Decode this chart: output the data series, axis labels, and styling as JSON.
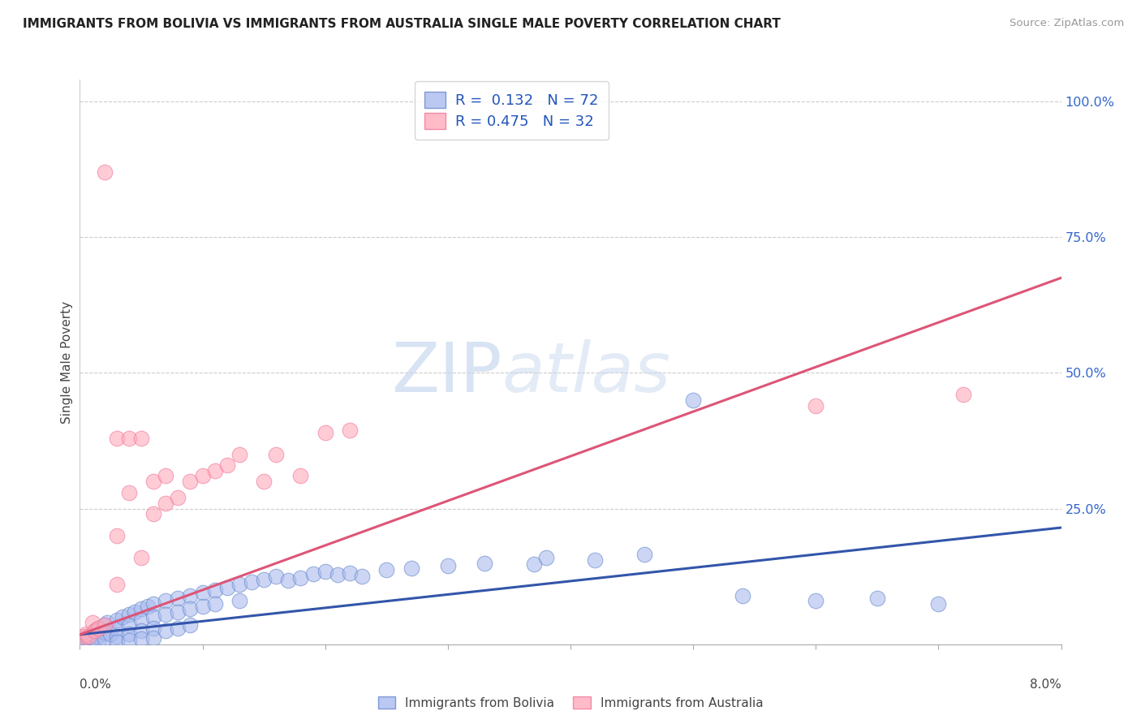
{
  "title": "IMMIGRANTS FROM BOLIVIA VS IMMIGRANTS FROM AUSTRALIA SINGLE MALE POVERTY CORRELATION CHART",
  "source": "Source: ZipAtlas.com",
  "ylabel": "Single Male Poverty",
  "xlim": [
    0.0,
    0.08
  ],
  "ylim": [
    0.0,
    1.04
  ],
  "bolivia_color": "#AABBEE",
  "australia_color": "#FFAABB",
  "bolivia_edge_color": "#6688CC",
  "australia_edge_color": "#EE7799",
  "bolivia_R": "0.132",
  "bolivia_N": "72",
  "australia_R": "0.475",
  "australia_N": "32",
  "bolivia_line_color": "#3355AA",
  "australia_line_color": "#DD5577",
  "watermark_zip": "ZIP",
  "watermark_atlas": "atlas",
  "legend_label_bolivia": "Immigrants from Bolivia",
  "legend_label_australia": "Immigrants from Australia",
  "right_yticks": [
    0.25,
    0.5,
    0.75,
    1.0
  ],
  "right_ytick_labels": [
    "25.0%",
    "50.0%",
    "75.0%",
    "100.0%"
  ],
  "bolivia_trend": [
    0.0,
    0.018,
    0.08,
    0.215
  ],
  "australia_trend": [
    0.0,
    0.018,
    0.08,
    0.675
  ],
  "bolivia_x": [
    0.0003,
    0.0005,
    0.0007,
    0.001,
    0.001,
    0.0012,
    0.0014,
    0.0015,
    0.0015,
    0.002,
    0.002,
    0.002,
    0.0022,
    0.0025,
    0.003,
    0.003,
    0.003,
    0.003,
    0.0035,
    0.004,
    0.004,
    0.004,
    0.004,
    0.0045,
    0.005,
    0.005,
    0.005,
    0.005,
    0.0055,
    0.006,
    0.006,
    0.006,
    0.006,
    0.007,
    0.007,
    0.007,
    0.008,
    0.008,
    0.008,
    0.009,
    0.009,
    0.009,
    0.01,
    0.01,
    0.011,
    0.011,
    0.012,
    0.013,
    0.013,
    0.014,
    0.015,
    0.016,
    0.017,
    0.018,
    0.019,
    0.02,
    0.021,
    0.022,
    0.023,
    0.025,
    0.027,
    0.03,
    0.033,
    0.037,
    0.038,
    0.042,
    0.046,
    0.05,
    0.054,
    0.06,
    0.065,
    0.07
  ],
  "bolivia_y": [
    0.01,
    0.015,
    0.008,
    0.02,
    0.012,
    0.025,
    0.015,
    0.03,
    0.005,
    0.035,
    0.022,
    0.01,
    0.04,
    0.02,
    0.045,
    0.03,
    0.015,
    0.005,
    0.05,
    0.055,
    0.035,
    0.02,
    0.008,
    0.06,
    0.065,
    0.045,
    0.025,
    0.01,
    0.07,
    0.075,
    0.05,
    0.03,
    0.012,
    0.08,
    0.055,
    0.025,
    0.085,
    0.06,
    0.03,
    0.09,
    0.065,
    0.035,
    0.095,
    0.07,
    0.1,
    0.075,
    0.105,
    0.11,
    0.08,
    0.115,
    0.12,
    0.125,
    0.118,
    0.122,
    0.13,
    0.135,
    0.128,
    0.132,
    0.125,
    0.138,
    0.14,
    0.145,
    0.15,
    0.148,
    0.16,
    0.155,
    0.165,
    0.45,
    0.09,
    0.08,
    0.085,
    0.075
  ],
  "australia_x": [
    0.0003,
    0.0005,
    0.0007,
    0.001,
    0.0012,
    0.0015,
    0.002,
    0.002,
    0.003,
    0.003,
    0.003,
    0.004,
    0.004,
    0.005,
    0.005,
    0.006,
    0.006,
    0.007,
    0.007,
    0.008,
    0.009,
    0.01,
    0.011,
    0.012,
    0.013,
    0.015,
    0.016,
    0.018,
    0.02,
    0.022,
    0.06,
    0.072
  ],
  "australia_y": [
    0.015,
    0.02,
    0.015,
    0.04,
    0.025,
    0.03,
    0.87,
    0.035,
    0.38,
    0.11,
    0.2,
    0.28,
    0.38,
    0.38,
    0.16,
    0.3,
    0.24,
    0.31,
    0.26,
    0.27,
    0.3,
    0.31,
    0.32,
    0.33,
    0.35,
    0.3,
    0.35,
    0.31,
    0.39,
    0.395,
    0.44,
    0.46
  ]
}
